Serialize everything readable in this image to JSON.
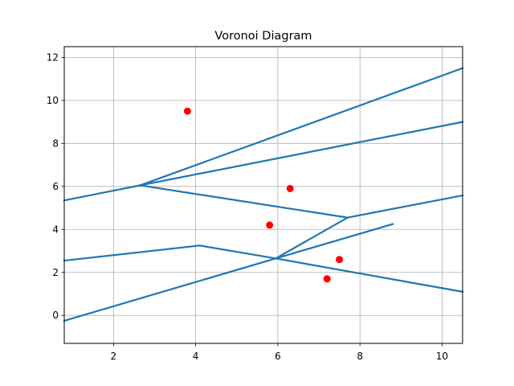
{
  "chart_data": {
    "type": "scatter",
    "title": "Voronoi Diagram",
    "xlabel": "",
    "ylabel": "",
    "xlim": [
      0.8,
      10.5
    ],
    "ylim": [
      -1.3,
      12.5
    ],
    "x_ticks": [
      2,
      4,
      6,
      8,
      10
    ],
    "y_ticks": [
      0,
      2,
      4,
      6,
      8,
      10,
      12
    ],
    "x_tick_labels": [
      "2",
      "4",
      "6",
      "8",
      "10"
    ],
    "y_tick_labels": [
      "0",
      "2",
      "4",
      "6",
      "8",
      "10",
      "12"
    ],
    "grid": true,
    "points": {
      "color": "#ff0000",
      "x": [
        3.8,
        6.3,
        5.8,
        7.5,
        7.2
      ],
      "y": [
        9.5,
        5.9,
        4.2,
        2.6,
        1.7
      ]
    },
    "edges": {
      "color": "#1f77b4",
      "segments": [
        [
          [
            0.8,
            5.35
          ],
          [
            2.65,
            6.05
          ]
        ],
        [
          [
            2.65,
            6.05
          ],
          [
            10.5,
            11.5
          ]
        ],
        [
          [
            2.65,
            6.05
          ],
          [
            10.5,
            9.0
          ]
        ],
        [
          [
            2.65,
            6.05
          ],
          [
            7.7,
            4.55
          ]
        ],
        [
          [
            7.7,
            4.55
          ],
          [
            10.5,
            5.58
          ]
        ],
        [
          [
            7.7,
            4.55
          ],
          [
            5.95,
            2.65
          ]
        ],
        [
          [
            0.8,
            -0.25
          ],
          [
            5.95,
            2.65
          ]
        ],
        [
          [
            5.95,
            2.65
          ],
          [
            8.8,
            4.25
          ]
        ],
        [
          [
            0.8,
            2.55
          ],
          [
            4.1,
            3.25
          ]
        ],
        [
          [
            4.1,
            3.25
          ],
          [
            5.95,
            2.65
          ]
        ],
        [
          [
            5.95,
            2.65
          ],
          [
            10.5,
            1.1
          ]
        ]
      ]
    }
  }
}
